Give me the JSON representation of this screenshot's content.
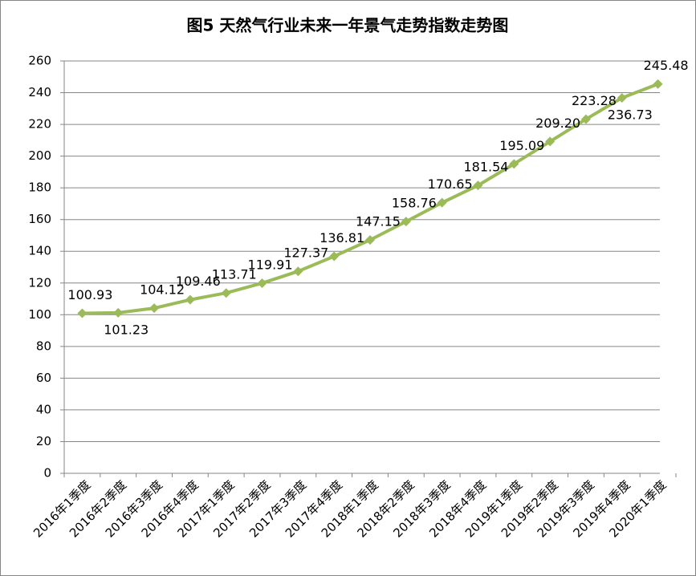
{
  "chart_data": {
    "type": "line",
    "title": "图5  天然气行业未来一年景气走势指数走势图",
    "categories": [
      "2016年1季度",
      "2016年2季度",
      "2016年3季度",
      "2016年4季度",
      "2017年1季度",
      "2017年2季度",
      "2017年3季度",
      "2017年4季度",
      "2018年1季度",
      "2018年2季度",
      "2018年3季度",
      "2018年4季度",
      "2019年1季度",
      "2019年2季度",
      "2019年3季度",
      "2019年4季度",
      "2020年1季度"
    ],
    "values": [
      100.93,
      101.23,
      104.12,
      109.46,
      113.71,
      119.91,
      127.37,
      136.81,
      147.15,
      158.76,
      170.65,
      181.54,
      195.09,
      209.2,
      223.28,
      236.73,
      245.48
    ],
    "value_labels": [
      "100.93",
      "101.23",
      "104.12",
      "109.46",
      "113.71",
      "119.91",
      "127.37",
      "136.81",
      "147.15",
      "158.76",
      "170.65",
      "181.54",
      "195.09",
      "209.20",
      "223.28",
      "236.73",
      "245.48"
    ],
    "color": "#9bbb59",
    "ylim": [
      0,
      260
    ],
    "yticks": [
      0,
      20,
      40,
      60,
      80,
      100,
      120,
      140,
      160,
      180,
      200,
      220,
      240,
      260
    ],
    "grid": true
  }
}
